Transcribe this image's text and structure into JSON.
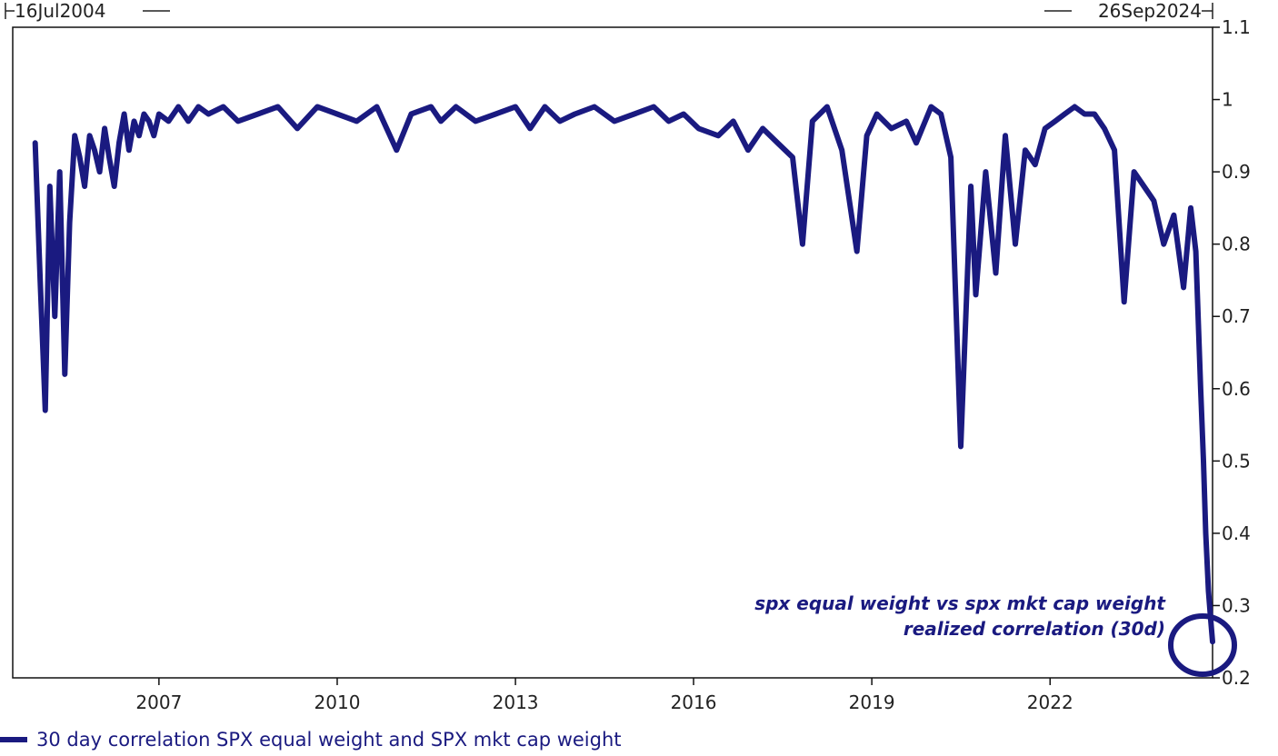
{
  "chart_data": {
    "type": "line",
    "start_label": "16Jul2004",
    "end_label": "26Sep2024",
    "x_ticks": [
      "2007",
      "2010",
      "2013",
      "2016",
      "2019",
      "2022"
    ],
    "y_ticks": [
      "1.1",
      "1",
      "0.9",
      "0.8",
      "0.7",
      "0.6",
      "0.5",
      "0.4",
      "0.3",
      "0.2"
    ],
    "ylim": [
      0.2,
      1.1
    ],
    "xlim": [
      "2004-07-16",
      "2024-09-26"
    ],
    "grid": false,
    "legend_position": "bottom-left",
    "annotation": [
      "spx equal weight vs spx mkt cap weight",
      "realized correlation (30d)"
    ],
    "series": [
      {
        "name": "30 day correlation SPX equal weight and SPX mkt cap weight",
        "color": "#1a1a80",
        "x": [
          "2004-12-01",
          "2005-01-01",
          "2005-02-01",
          "2005-03-01",
          "2005-04-01",
          "2005-05-01",
          "2005-06-01",
          "2005-07-01",
          "2005-08-01",
          "2005-09-01",
          "2005-10-01",
          "2005-11-01",
          "2005-12-01",
          "2006-01-01",
          "2006-02-01",
          "2006-03-01",
          "2006-04-01",
          "2006-05-01",
          "2006-06-01",
          "2006-07-01",
          "2006-08-01",
          "2006-09-01",
          "2006-10-01",
          "2006-11-01",
          "2006-12-01",
          "2007-01-01",
          "2007-03-01",
          "2007-05-01",
          "2007-07-01",
          "2007-09-01",
          "2007-11-01",
          "2008-02-01",
          "2008-05-01",
          "2008-09-01",
          "2009-01-01",
          "2009-05-01",
          "2009-09-01",
          "2010-01-01",
          "2010-05-01",
          "2010-09-01",
          "2011-01-01",
          "2011-04-01",
          "2011-08-01",
          "2011-10-01",
          "2012-01-01",
          "2012-05-01",
          "2012-09-01",
          "2013-01-01",
          "2013-04-01",
          "2013-07-01",
          "2013-10-01",
          "2014-01-01",
          "2014-05-01",
          "2014-09-01",
          "2015-01-01",
          "2015-05-01",
          "2015-08-01",
          "2015-11-01",
          "2016-02-01",
          "2016-06-01",
          "2016-09-01",
          "2016-12-01",
          "2017-03-01",
          "2017-06-01",
          "2017-09-01",
          "2017-11-01",
          "2018-01-01",
          "2018-04-01",
          "2018-07-01",
          "2018-10-01",
          "2018-12-01",
          "2019-02-01",
          "2019-05-01",
          "2019-08-01",
          "2019-10-01",
          "2020-01-01",
          "2020-03-01",
          "2020-05-01",
          "2020-07-01",
          "2020-09-01",
          "2020-10-01",
          "2020-12-01",
          "2021-02-01",
          "2021-04-01",
          "2021-06-01",
          "2021-08-01",
          "2021-10-01",
          "2021-12-01",
          "2022-02-01",
          "2022-04-01",
          "2022-06-01",
          "2022-08-01",
          "2022-10-01",
          "2022-12-01",
          "2023-02-01",
          "2023-04-01",
          "2023-06-01",
          "2023-08-01",
          "2023-10-01",
          "2023-12-01",
          "2024-02-01",
          "2024-04-01",
          "2024-05-15",
          "2024-06-15",
          "2024-07-15",
          "2024-08-01",
          "2024-08-15",
          "2024-09-01",
          "2024-09-15",
          "2024-09-26"
        ],
        "values": [
          0.94,
          0.75,
          0.57,
          0.88,
          0.7,
          0.9,
          0.62,
          0.83,
          0.95,
          0.92,
          0.88,
          0.95,
          0.93,
          0.9,
          0.96,
          0.92,
          0.88,
          0.94,
          0.98,
          0.93,
          0.97,
          0.95,
          0.98,
          0.97,
          0.95,
          0.98,
          0.97,
          0.99,
          0.97,
          0.99,
          0.98,
          0.99,
          0.97,
          0.98,
          0.99,
          0.96,
          0.99,
          0.98,
          0.97,
          0.99,
          0.93,
          0.98,
          0.99,
          0.97,
          0.99,
          0.97,
          0.98,
          0.99,
          0.96,
          0.99,
          0.97,
          0.98,
          0.99,
          0.97,
          0.98,
          0.99,
          0.97,
          0.98,
          0.96,
          0.95,
          0.97,
          0.93,
          0.96,
          0.94,
          0.92,
          0.8,
          0.97,
          0.99,
          0.93,
          0.79,
          0.95,
          0.98,
          0.96,
          0.97,
          0.94,
          0.99,
          0.98,
          0.92,
          0.52,
          0.88,
          0.73,
          0.9,
          0.76,
          0.95,
          0.8,
          0.93,
          0.91,
          0.96,
          0.97,
          0.98,
          0.99,
          0.98,
          0.98,
          0.96,
          0.93,
          0.72,
          0.9,
          0.88,
          0.86,
          0.8,
          0.84,
          0.74,
          0.85,
          0.79,
          0.6,
          0.5,
          0.4,
          0.32,
          0.28,
          0.25
        ]
      }
    ]
  }
}
